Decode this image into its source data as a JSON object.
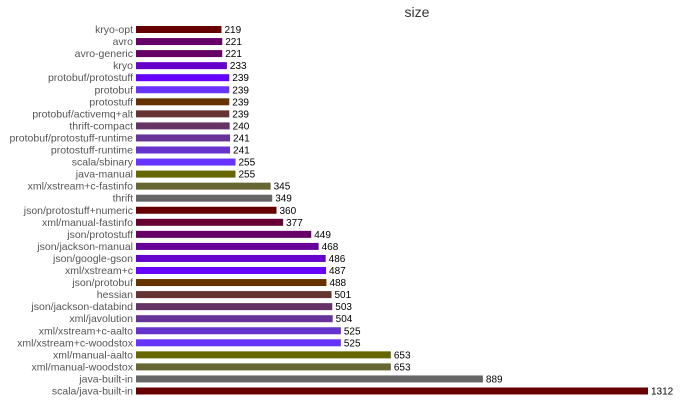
{
  "chart_data": {
    "type": "bar",
    "orientation": "horizontal",
    "title": "size",
    "xlabel": "",
    "ylabel": "",
    "xlim": [
      0,
      1312
    ],
    "grid": false,
    "legend": "none",
    "categories": [
      "kryo-opt",
      "avro",
      "avro-generic",
      "kryo",
      "protobuf/protostuff",
      "protobuf",
      "protostuff",
      "protobuf/activemq+alt",
      "thrift-compact",
      "protobuf/protostuff-runtime",
      "protostuff-runtime",
      "scala/sbinary",
      "java-manual",
      "xml/xstream+c-fastinfo",
      "thrift",
      "json/protostuff+numeric",
      "xml/manual-fastinfo",
      "json/protostuff",
      "json/jackson-manual",
      "json/google-gson",
      "xml/xstream+c",
      "json/protobuf",
      "hessian",
      "json/jackson-databind",
      "xml/javolution",
      "xml/xstream+c-aalto",
      "xml/xstream+c-woodstox",
      "xml/manual-aalto",
      "xml/manual-woodstox",
      "java-built-in",
      "scala/java-built-in"
    ],
    "values": [
      219,
      221,
      221,
      233,
      239,
      239,
      239,
      239,
      240,
      241,
      241,
      255,
      255,
      345,
      349,
      360,
      377,
      449,
      468,
      486,
      487,
      488,
      501,
      503,
      504,
      525,
      525,
      653,
      653,
      889,
      1312
    ],
    "labels": [
      "219",
      "221",
      "221",
      "233",
      "239",
      "239",
      "239",
      "239",
      "240",
      "241",
      "241",
      "255",
      "255",
      "345",
      "349",
      "360",
      "377",
      "449",
      "468",
      "486",
      "487",
      "488",
      "501",
      "503",
      "504",
      "525",
      "525",
      "653",
      "653",
      "889",
      "1312"
    ],
    "colors": [
      "#660000",
      "#660066",
      "#660066",
      "#6600cc",
      "#6600ff",
      "#6633ff",
      "#663300",
      "#663333",
      "#663366",
      "#663399",
      "#6633cc",
      "#6633ff",
      "#666600",
      "#666633",
      "#666666",
      "#660000",
      "#660033",
      "#660066",
      "#660099",
      "#6600cc",
      "#6600ff",
      "#663300",
      "#663333",
      "#663366",
      "#663399",
      "#6633cc",
      "#6633ff",
      "#666600",
      "#666633",
      "#666666",
      "#660000"
    ]
  }
}
